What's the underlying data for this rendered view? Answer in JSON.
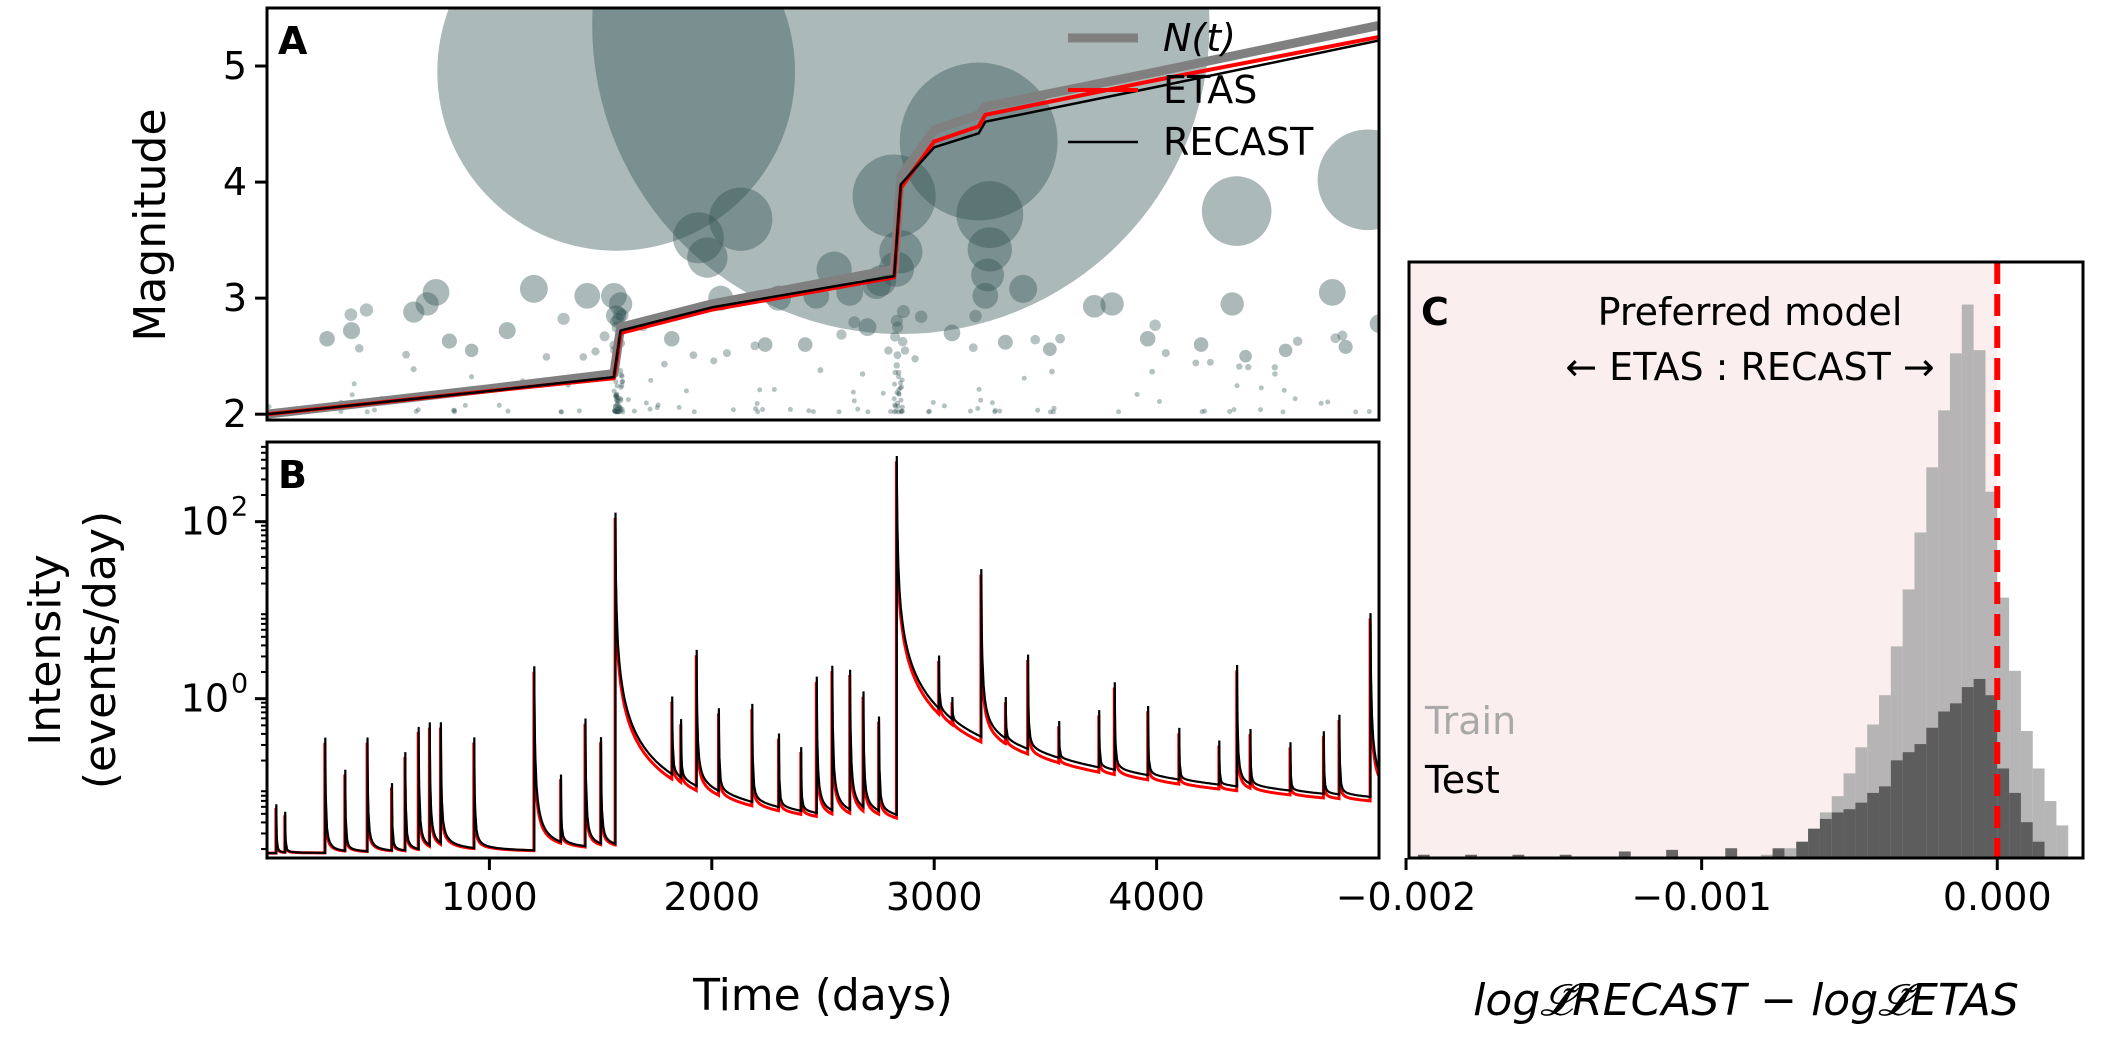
{
  "panels": {
    "a": {
      "letter": "A",
      "ylabel": "Magnitude",
      "yticks": [
        "2",
        "3",
        "4",
        "5"
      ],
      "ylim": [
        1.95,
        5.5
      ],
      "xlim": [
        0,
        5000
      ]
    },
    "b": {
      "letter": "B",
      "ylabel_line1": "Intensity",
      "ylabel_line2": "(events/day)",
      "ytick_base": "10",
      "ytick_exps": [
        "0",
        "2"
      ],
      "xticks": [
        "1000",
        "2000",
        "3000",
        "4000"
      ],
      "xlabel": "Time (days)",
      "xlim": [
        0,
        5000
      ]
    },
    "c": {
      "letter": "C",
      "annotation_line1": "Preferred model",
      "annotation_line2": "← ETAS : RECAST →",
      "xticks": [
        "−0.002",
        "−0.001",
        "0.000"
      ],
      "xlim": [
        -0.00199,
        0.00029
      ],
      "train_label": "Train",
      "test_label": "Test",
      "xlabel": "log𝓛̃RECAST − log𝓛̃ETAS"
    }
  },
  "legend": [
    {
      "label": "N(t)",
      "color": "#808080"
    },
    {
      "label": "ETAS",
      "color": "#ff0000"
    },
    {
      "label": "RECAST",
      "color": "#000000"
    }
  ],
  "colors": {
    "scatter": "#2f4f4f",
    "etas": "#ff0000",
    "recast": "#000000",
    "nt": "#808080",
    "shade": "#fbeeee",
    "train": "#a9a9a9",
    "test": "#4d4d4d",
    "vline": "#ff0000"
  },
  "chart_data": [
    {
      "panel": "A",
      "type": "scatter",
      "ylabel": "Magnitude",
      "xlim": [
        0,
        5000
      ],
      "ylim": [
        1.95,
        5.5
      ],
      "events": [
        {
          "t": 1570,
          "m": 4.95
        },
        {
          "t": 2850,
          "m": 5.35
        },
        {
          "t": 3200,
          "m": 4.35
        },
        {
          "t": 4950,
          "m": 4.02
        },
        {
          "t": 4360,
          "m": 3.75
        },
        {
          "t": 3250,
          "m": 3.72
        },
        {
          "t": 2130,
          "m": 3.68
        },
        {
          "t": 1940,
          "m": 3.52
        },
        {
          "t": 1980,
          "m": 3.35
        },
        {
          "t": 3250,
          "m": 3.42
        },
        {
          "t": 2820,
          "m": 3.88
        },
        {
          "t": 2850,
          "m": 3.4
        },
        {
          "t": 2830,
          "m": 3.25
        },
        {
          "t": 2740,
          "m": 3.12
        },
        {
          "t": 2760,
          "m": 3.15
        },
        {
          "t": 3240,
          "m": 3.2
        },
        {
          "t": 3400,
          "m": 3.08
        },
        {
          "t": 3230,
          "m": 3.02
        },
        {
          "t": 1560,
          "m": 3.02
        },
        {
          "t": 1590,
          "m": 2.95
        },
        {
          "t": 1570,
          "m": 2.85
        },
        {
          "t": 1200,
          "m": 3.08
        },
        {
          "t": 1440,
          "m": 3.02
        },
        {
          "t": 2550,
          "m": 3.25
        },
        {
          "t": 2470,
          "m": 3.02
        },
        {
          "t": 2040,
          "m": 3.0
        },
        {
          "t": 2300,
          "m": 3.0
        },
        {
          "t": 2620,
          "m": 3.05
        },
        {
          "t": 3720,
          "m": 2.93
        },
        {
          "t": 3800,
          "m": 2.95
        },
        {
          "t": 4340,
          "m": 2.95
        },
        {
          "t": 4790,
          "m": 3.05
        },
        {
          "t": 5000,
          "m": 2.78
        },
        {
          "t": 760,
          "m": 3.05
        },
        {
          "t": 720,
          "m": 2.95
        },
        {
          "t": 660,
          "m": 2.88
        },
        {
          "t": 270,
          "m": 2.65
        },
        {
          "t": 380,
          "m": 2.72
        },
        {
          "t": 1080,
          "m": 2.72
        },
        {
          "t": 820,
          "m": 2.63
        },
        {
          "t": 920,
          "m": 2.55
        },
        {
          "t": 1820,
          "m": 2.65
        },
        {
          "t": 2240,
          "m": 2.6
        },
        {
          "t": 2420,
          "m": 2.6
        },
        {
          "t": 2700,
          "m": 2.75
        },
        {
          "t": 3080,
          "m": 2.7
        },
        {
          "t": 3320,
          "m": 2.62
        },
        {
          "t": 3520,
          "m": 2.56
        },
        {
          "t": 3960,
          "m": 2.65
        },
        {
          "t": 4200,
          "m": 2.6
        },
        {
          "t": 4400,
          "m": 2.5
        },
        {
          "t": 4580,
          "m": 2.55
        },
        {
          "t": 4850,
          "m": 2.58
        }
      ],
      "series": [
        {
          "name": "N(t)",
          "x": [
            0,
            1000,
            1560,
            1590,
            2000,
            2820,
            2850,
            3000,
            3200,
            3230,
            4000,
            5000
          ],
          "y": [
            2.0,
            2.22,
            2.35,
            2.75,
            2.95,
            3.25,
            4.05,
            4.45,
            4.58,
            4.65,
            4.95,
            5.35
          ]
        },
        {
          "name": "ETAS",
          "x": [
            0,
            1000,
            1560,
            1590,
            2000,
            2820,
            2850,
            3000,
            3200,
            3230,
            4000,
            5000
          ],
          "y": [
            2.0,
            2.2,
            2.31,
            2.7,
            2.9,
            3.18,
            3.95,
            4.35,
            4.48,
            4.58,
            4.88,
            5.25
          ]
        },
        {
          "name": "RECAST",
          "x": [
            0,
            1000,
            1560,
            1590,
            2000,
            2820,
            2850,
            3000,
            3200,
            3230,
            4000,
            5000
          ],
          "y": [
            2.0,
            2.2,
            2.32,
            2.72,
            2.92,
            3.19,
            3.98,
            4.3,
            4.42,
            4.52,
            4.82,
            5.22
          ]
        }
      ]
    },
    {
      "panel": "B",
      "type": "line",
      "ylabel": "Intensity (events/day)",
      "xlabel": "Time (days)",
      "xlim": [
        0,
        5000
      ],
      "yscale": "log",
      "ylim_log10": [
        -1.8,
        2.9
      ],
      "background": 0.018,
      "spikes": [
        {
          "t": 40,
          "peak": 0.04
        },
        {
          "t": 80,
          "peak": 0.03
        },
        {
          "t": 260,
          "peak": 0.3
        },
        {
          "t": 350,
          "peak": 0.12
        },
        {
          "t": 450,
          "peak": 0.3
        },
        {
          "t": 560,
          "peak": 0.08
        },
        {
          "t": 620,
          "peak": 0.2
        },
        {
          "t": 680,
          "peak": 0.4
        },
        {
          "t": 730,
          "peak": 0.45
        },
        {
          "t": 780,
          "peak": 0.45
        },
        {
          "t": 930,
          "peak": 0.3
        },
        {
          "t": 1200,
          "peak": 2.0
        },
        {
          "t": 1320,
          "peak": 0.1
        },
        {
          "t": 1430,
          "peak": 0.5
        },
        {
          "t": 1500,
          "peak": 0.3
        },
        {
          "t": 1565,
          "peak": 110
        },
        {
          "t": 1820,
          "peak": 0.8
        },
        {
          "t": 1860,
          "peak": 0.4
        },
        {
          "t": 1930,
          "peak": 3.0
        },
        {
          "t": 2030,
          "peak": 0.6
        },
        {
          "t": 2180,
          "peak": 0.7
        },
        {
          "t": 2300,
          "peak": 0.3
        },
        {
          "t": 2400,
          "peak": 0.2
        },
        {
          "t": 2470,
          "peak": 1.5
        },
        {
          "t": 2540,
          "peak": 2.0
        },
        {
          "t": 2620,
          "peak": 1.8
        },
        {
          "t": 2680,
          "peak": 1.0
        },
        {
          "t": 2750,
          "peak": 0.5
        },
        {
          "t": 2830,
          "peak": 480
        },
        {
          "t": 3020,
          "peak": 2.0
        },
        {
          "t": 3080,
          "peak": 0.4
        },
        {
          "t": 3210,
          "peak": 25
        },
        {
          "t": 3320,
          "peak": 0.6
        },
        {
          "t": 3420,
          "peak": 2.5
        },
        {
          "t": 3560,
          "peak": 0.3
        },
        {
          "t": 3740,
          "peak": 0.5
        },
        {
          "t": 3810,
          "peak": 1.2
        },
        {
          "t": 3960,
          "peak": 0.6
        },
        {
          "t": 4100,
          "peak": 0.3
        },
        {
          "t": 4280,
          "peak": 0.2
        },
        {
          "t": 4360,
          "peak": 2.0
        },
        {
          "t": 4420,
          "peak": 0.3
        },
        {
          "t": 4600,
          "peak": 0.2
        },
        {
          "t": 4750,
          "peak": 0.3
        },
        {
          "t": 4820,
          "peak": 0.5
        },
        {
          "t": 4960,
          "peak": 8.0
        }
      ]
    },
    {
      "panel": "C",
      "type": "bar",
      "subtype": "histogram",
      "xlabel": "log𝓛̃RECAST − log𝓛̃ETAS",
      "xlim": [
        -0.00199,
        0.00029
      ],
      "preferred_boundary": 0.0,
      "bin_width": 4e-05,
      "series": [
        {
          "name": "Train",
          "bin_starts": [
            -0.0008,
            -0.00076,
            -0.00072,
            -0.00068,
            -0.00064,
            -0.0006,
            -0.00056,
            -0.00052,
            -0.00048,
            -0.00044,
            -0.0004,
            -0.00036,
            -0.00032,
            -0.00028,
            -0.00024,
            -0.0002,
            -0.00016,
            -0.00012,
            -8e-05,
            -4e-05,
            0.0,
            4e-05,
            8e-05,
            0.00012,
            0.00016,
            0.0002
          ],
          "counts": [
            2,
            5,
            6,
            10,
            18,
            28,
            38,
            52,
            68,
            82,
            100,
            130,
            165,
            200,
            240,
            275,
            310,
            340,
            312,
            225,
            160,
            115,
            78,
            55,
            35,
            20
          ]
        },
        {
          "name": "Test",
          "bin_starts": [
            -0.00196,
            -0.0018,
            -0.00164,
            -0.00148,
            -0.00128,
            -0.00112,
            -0.00092,
            -0.00076,
            -0.00068,
            -0.00064,
            -0.0006,
            -0.00056,
            -0.00052,
            -0.00048,
            -0.00044,
            -0.0004,
            -0.00036,
            -0.00032,
            -0.00028,
            -0.00024,
            -0.0002,
            -0.00016,
            -0.00012,
            -8e-05,
            -4e-05,
            0.0,
            4e-05,
            8e-05,
            0.00012
          ],
          "counts": [
            2,
            2,
            2,
            2,
            4,
            5,
            6,
            6,
            10,
            18,
            24,
            28,
            30,
            34,
            40,
            44,
            60,
            65,
            70,
            80,
            90,
            95,
            105,
            110,
            100,
            55,
            40,
            22,
            10
          ]
        }
      ]
    }
  ]
}
